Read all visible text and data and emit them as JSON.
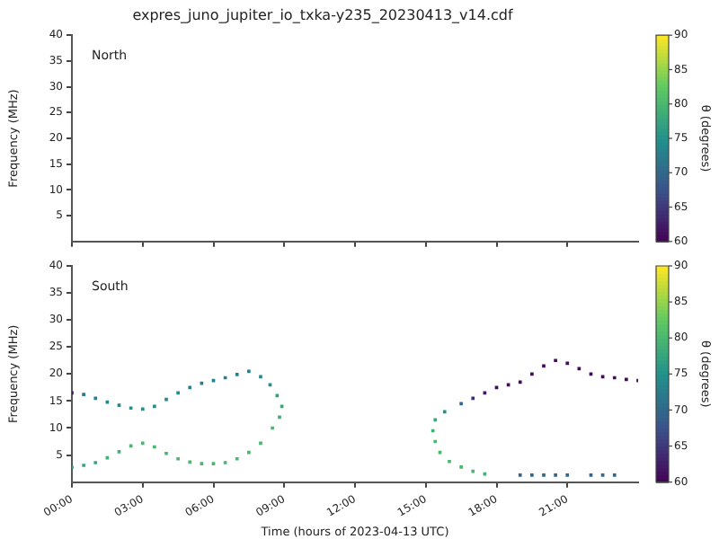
{
  "chart_data": [
    {
      "type": "scatter",
      "title": "expres_juno_jupiter_io_txka-y235_20230413_v14.cdf",
      "ylabel": "Frequency (MHz)",
      "clabel": "θ (degrees)",
      "annotations": [
        "North"
      ],
      "xlim": [
        0,
        24
      ],
      "xticks": [
        {
          "value": 0,
          "label": null
        },
        {
          "value": 3,
          "label": null
        },
        {
          "value": 6,
          "label": null
        },
        {
          "value": 9,
          "label": null
        },
        {
          "value": 12,
          "label": null
        },
        {
          "value": 15,
          "label": null
        },
        {
          "value": 18,
          "label": null
        },
        {
          "value": 21,
          "label": null
        }
      ],
      "ylim": [
        0,
        40
      ],
      "yticks": [
        5,
        10,
        15,
        20,
        25,
        30,
        35,
        40
      ],
      "clim": [
        60,
        90
      ],
      "cticks": [
        60,
        65,
        70,
        75,
        80,
        85,
        90
      ],
      "grid": false,
      "legend": false,
      "marker": "square",
      "tick_labels": "y"
    },
    {
      "type": "scatter",
      "xlabel": "Time (hours of 2023-04-13 UTC)",
      "ylabel": "Frequency (MHz)",
      "clabel": "θ (degrees)",
      "annotations": [
        "South"
      ],
      "x": [
        0,
        0.5,
        1,
        1.5,
        2,
        2.5,
        3,
        3.5,
        4,
        4.5,
        5,
        5.5,
        6,
        6.5,
        7,
        7.5,
        8,
        8.4,
        8.7,
        8.9,
        0,
        0.5,
        1,
        1.5,
        2,
        2.5,
        3,
        3.5,
        4,
        4.5,
        5,
        5.5,
        6,
        6.5,
        7,
        7.5,
        8,
        8.5,
        8.8,
        17.5,
        17,
        16.5,
        16,
        15.6,
        15.4,
        15.3,
        15.4,
        15.8,
        16.5,
        17,
        17.5,
        18,
        18.5,
        19,
        19.5,
        20,
        20.5,
        21,
        21.5,
        22,
        22.5,
        23,
        23.5,
        24,
        19,
        19.5,
        20,
        20.5,
        21,
        22,
        22.5,
        23
      ],
      "values": [
        16.5,
        16.2,
        15.5,
        14.8,
        14.2,
        13.7,
        13.5,
        14,
        15.3,
        16.5,
        17.5,
        18.3,
        18.8,
        19.3,
        19.9,
        20.5,
        19.5,
        18,
        16,
        14,
        2.7,
        3.1,
        3.6,
        4.5,
        5.6,
        6.7,
        7.2,
        6.5,
        5.3,
        4.3,
        3.7,
        3.4,
        3.4,
        3.6,
        4.3,
        5.5,
        7.2,
        10,
        12,
        1.5,
        2,
        2.8,
        3.8,
        5.5,
        7.5,
        9.5,
        11.5,
        13,
        14.5,
        15.5,
        16.5,
        17.5,
        18,
        18.5,
        20,
        21.5,
        22.5,
        22,
        21,
        20,
        19.5,
        19.3,
        19,
        18.8,
        1.3,
        1.3,
        1.3,
        1.3,
        1.3,
        1.3,
        1.3,
        1.3
      ],
      "cvalues": [
        62,
        72,
        73,
        74,
        74,
        75,
        75,
        75,
        74,
        74,
        73,
        73,
        73,
        73,
        73,
        73,
        74,
        75,
        77,
        78,
        77,
        78,
        78,
        79,
        79,
        80,
        80,
        80,
        80,
        80,
        80,
        80,
        80,
        80,
        80,
        80,
        80,
        80,
        79,
        79,
        80,
        80,
        80,
        80,
        80,
        79,
        78,
        75,
        70,
        64,
        62,
        61,
        61,
        61,
        61,
        61,
        61,
        61,
        61,
        61,
        61,
        61,
        61,
        61,
        70,
        70,
        70,
        70,
        70,
        70,
        70,
        70
      ],
      "xlim": [
        0,
        24
      ],
      "xticks": [
        {
          "value": 0,
          "label": "00:00"
        },
        {
          "value": 3,
          "label": "03:00"
        },
        {
          "value": 6,
          "label": "06:00"
        },
        {
          "value": 9,
          "label": "09:00"
        },
        {
          "value": 12,
          "label": "12:00"
        },
        {
          "value": 15,
          "label": "15:00"
        },
        {
          "value": 18,
          "label": "18:00"
        },
        {
          "value": 21,
          "label": "21:00"
        }
      ],
      "ylim": [
        0,
        40
      ],
      "yticks": [
        5,
        10,
        15,
        20,
        25,
        30,
        35,
        40
      ],
      "clim": [
        60,
        90
      ],
      "cticks": [
        60,
        65,
        70,
        75,
        80,
        85,
        90
      ],
      "grid": false,
      "legend": false,
      "marker": "square"
    }
  ]
}
